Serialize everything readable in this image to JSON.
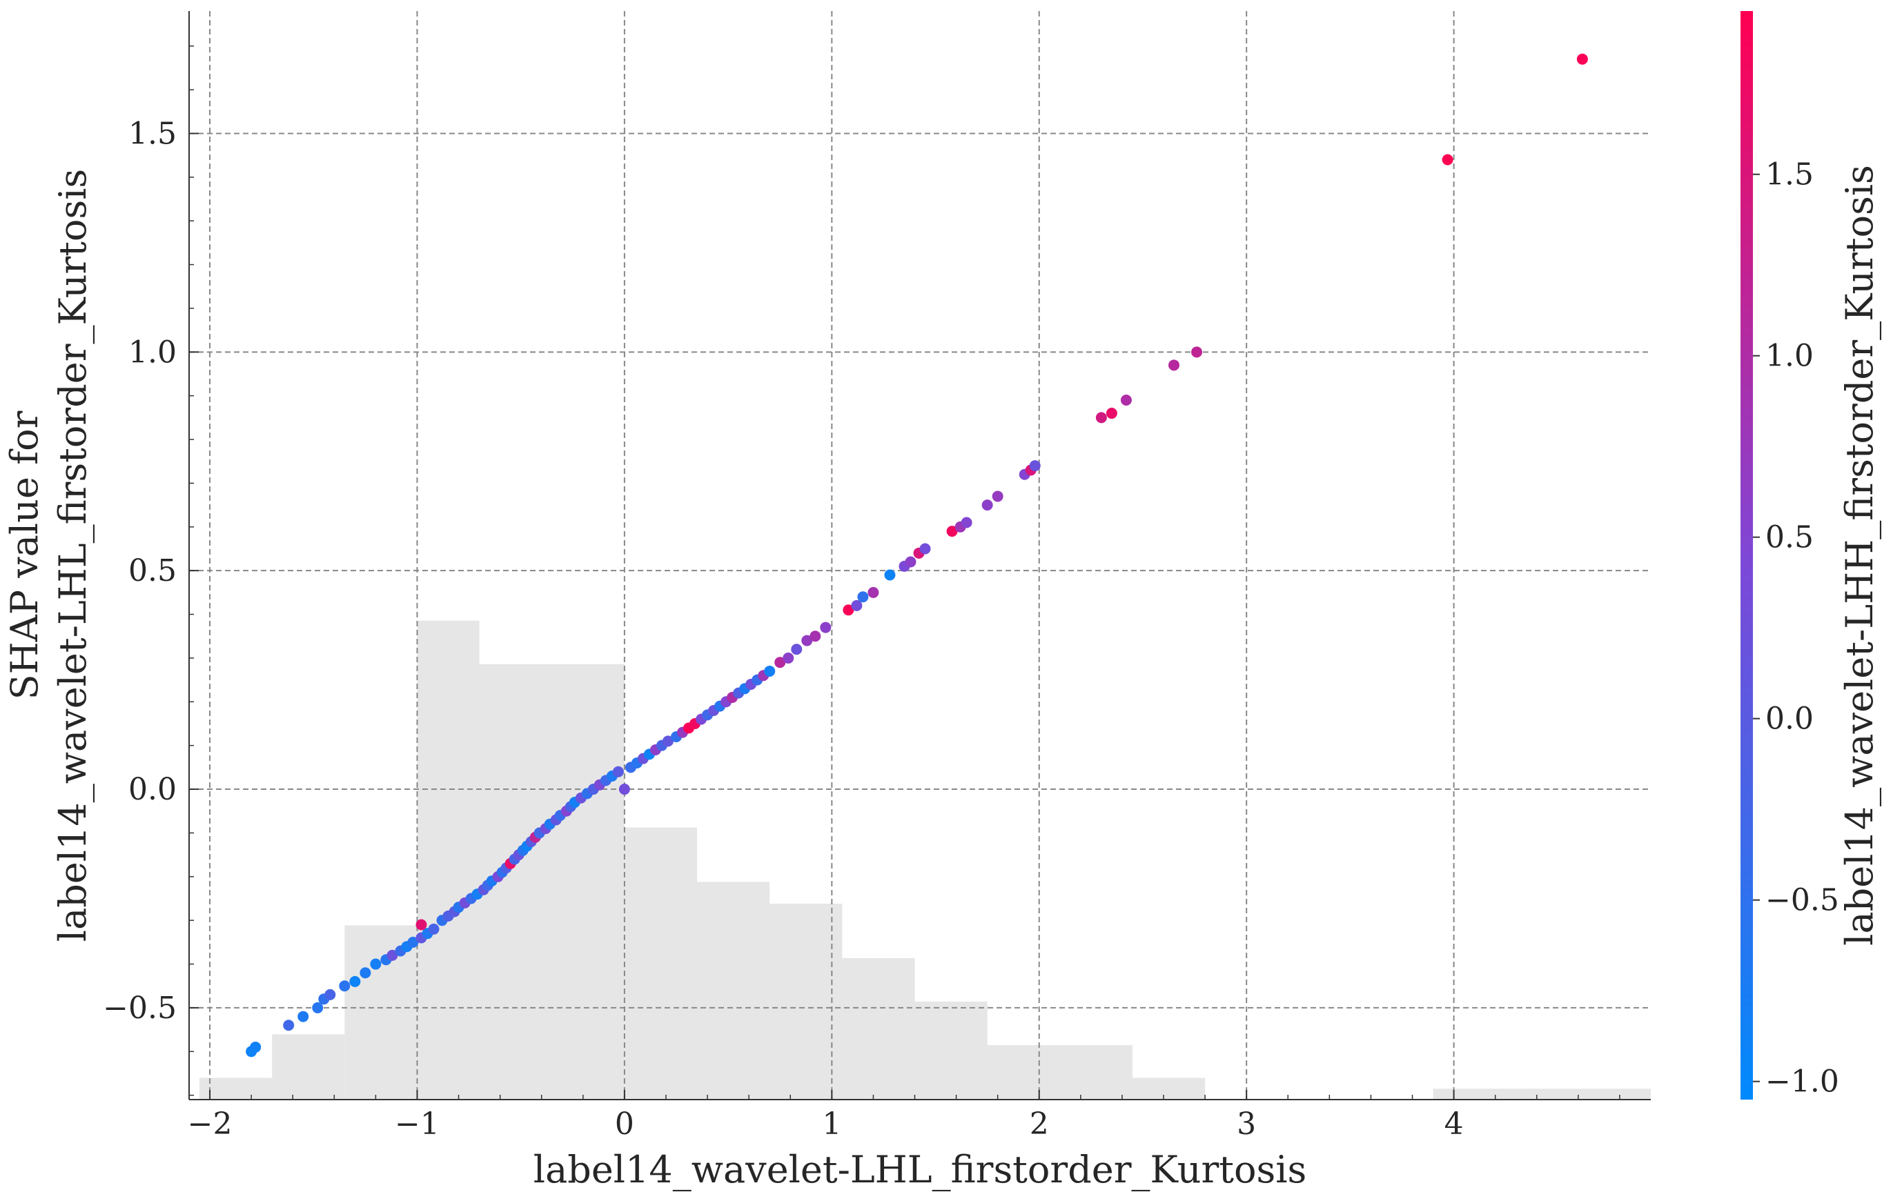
{
  "chart_data": {
    "type": "scatter",
    "title": "",
    "xlabel": "label14_wavelet-LHL_firstorder_Kurtosis",
    "ylabel_lines": [
      "SHAP value for",
      "label14_wavelet-LHL_firstorder_Kurtosis"
    ],
    "xlim": [
      -2.1,
      4.95
    ],
    "ylim": [
      -0.71,
      1.78
    ],
    "xticks": [
      -2,
      -1,
      0,
      1,
      2,
      3,
      4
    ],
    "xtick_labels": [
      "−2",
      "−1",
      "0",
      "1",
      "2",
      "3",
      "4"
    ],
    "yticks": [
      -0.5,
      0.0,
      0.5,
      1.0,
      1.5
    ],
    "ytick_labels": [
      "−0.5",
      "0.0",
      "0.5",
      "1.0",
      "1.5"
    ],
    "grid": true,
    "colorbar": {
      "label": "label14_wavelet-LHH_firstorder_Kurtosis",
      "range": [
        -1.05,
        1.95
      ],
      "ticks": [
        -1.0,
        -0.5,
        0.0,
        0.5,
        1.0,
        1.5
      ],
      "tick_labels": [
        "−1.0",
        "−0.5",
        "0.0",
        "0.5",
        "1.0",
        "1.5"
      ],
      "low_color": "#008afb",
      "high_color": "#ff0052"
    },
    "histogram": {
      "color": "#e6e6e6",
      "bins": [
        {
          "x0": -2.05,
          "x1": -1.7,
          "h": 0.02
        },
        {
          "x0": -1.7,
          "x1": -1.35,
          "h": 0.06
        },
        {
          "x0": -1.35,
          "x1": -1.0,
          "h": 0.16
        },
        {
          "x0": -1.0,
          "x1": -0.7,
          "h": 0.44
        },
        {
          "x0": -0.7,
          "x1": 0.0,
          "h": 0.4
        },
        {
          "x0": 0.0,
          "x1": 0.35,
          "h": 0.25
        },
        {
          "x0": 0.35,
          "x1": 0.7,
          "h": 0.2
        },
        {
          "x0": 0.7,
          "x1": 1.05,
          "h": 0.18
        },
        {
          "x0": 1.05,
          "x1": 1.4,
          "h": 0.13
        },
        {
          "x0": 1.4,
          "x1": 1.75,
          "h": 0.09
        },
        {
          "x0": 1.75,
          "x1": 2.45,
          "h": 0.05
        },
        {
          "x0": 2.45,
          "x1": 2.8,
          "h": 0.02
        },
        {
          "x0": 3.9,
          "x1": 4.25,
          "h": 0.01
        },
        {
          "x0": 4.25,
          "x1": 4.95,
          "h": 0.01
        }
      ]
    },
    "series": [
      {
        "points": [
          [
            -1.8,
            -0.6,
            -0.9
          ],
          [
            -1.78,
            -0.59,
            -0.85
          ],
          [
            -1.62,
            -0.54,
            -0.3
          ],
          [
            -1.55,
            -0.52,
            -0.7
          ],
          [
            -1.48,
            -0.5,
            -0.6
          ],
          [
            -1.45,
            -0.48,
            -0.5
          ],
          [
            -1.42,
            -0.47,
            -0.2
          ],
          [
            -1.35,
            -0.45,
            -0.55
          ],
          [
            -1.3,
            -0.44,
            -0.9
          ],
          [
            -1.25,
            -0.42,
            -0.7
          ],
          [
            -1.2,
            -0.4,
            -0.8
          ],
          [
            -1.15,
            -0.39,
            -0.6
          ],
          [
            -1.12,
            -0.38,
            0.2
          ],
          [
            -1.08,
            -0.37,
            -0.4
          ],
          [
            -1.05,
            -0.36,
            -0.8
          ],
          [
            -1.02,
            -0.35,
            -0.6
          ],
          [
            -0.98,
            -0.34,
            0.1
          ],
          [
            -0.95,
            -0.33,
            -0.7
          ],
          [
            -0.92,
            -0.32,
            -0.2
          ],
          [
            -0.98,
            -0.31,
            1.6
          ],
          [
            -0.88,
            -0.3,
            -0.5
          ],
          [
            -0.85,
            -0.29,
            -0.1
          ],
          [
            -0.82,
            -0.28,
            0.0
          ],
          [
            -0.8,
            -0.27,
            -0.6
          ],
          [
            -0.77,
            -0.26,
            0.3
          ],
          [
            -0.74,
            -0.25,
            -0.4
          ],
          [
            -0.71,
            -0.24,
            -0.8
          ],
          [
            -0.68,
            -0.23,
            0.1
          ],
          [
            -0.66,
            -0.22,
            -0.3
          ],
          [
            -0.64,
            -0.21,
            -0.7
          ],
          [
            -0.61,
            -0.2,
            0.4
          ],
          [
            -0.59,
            -0.19,
            -0.5
          ],
          [
            -0.57,
            -0.18,
            -0.1
          ],
          [
            -0.55,
            -0.17,
            1.7
          ],
          [
            -0.53,
            -0.16,
            -0.2
          ],
          [
            -0.51,
            -0.15,
            0.2
          ],
          [
            -0.49,
            -0.14,
            -0.6
          ],
          [
            -0.47,
            -0.13,
            -0.9
          ],
          [
            -0.45,
            -0.12,
            0.0
          ],
          [
            -0.43,
            -0.11,
            1.2
          ],
          [
            -0.41,
            -0.1,
            -0.3
          ],
          [
            -0.38,
            -0.09,
            0.3
          ],
          [
            -0.36,
            -0.08,
            -0.7
          ],
          [
            -0.33,
            -0.07,
            0.1
          ],
          [
            -0.31,
            -0.06,
            -0.4
          ],
          [
            -0.28,
            -0.05,
            0.5
          ],
          [
            -0.26,
            -0.04,
            -0.2
          ],
          [
            -0.24,
            -0.03,
            -0.8
          ],
          [
            -0.21,
            -0.02,
            0.2
          ],
          [
            -0.18,
            -0.01,
            -0.5
          ],
          [
            -0.15,
            0.0,
            -0.1
          ],
          [
            -0.12,
            0.01,
            0.4
          ],
          [
            -0.09,
            0.02,
            -0.3
          ],
          [
            -0.06,
            0.03,
            -0.7
          ],
          [
            -0.03,
            0.04,
            0.0
          ],
          [
            0.0,
            0.0,
            0.3
          ],
          [
            0.03,
            0.05,
            -0.4
          ],
          [
            0.06,
            0.06,
            -0.6
          ],
          [
            0.09,
            0.07,
            0.2
          ],
          [
            0.12,
            0.08,
            -0.9
          ],
          [
            0.15,
            0.09,
            0.6
          ],
          [
            0.18,
            0.1,
            -0.2
          ],
          [
            0.21,
            0.11,
            0.1
          ],
          [
            0.25,
            0.12,
            -0.5
          ],
          [
            0.28,
            0.13,
            0.7
          ],
          [
            0.31,
            0.14,
            1.9
          ],
          [
            0.34,
            0.15,
            1.8
          ],
          [
            0.37,
            0.16,
            0.4
          ],
          [
            0.4,
            0.17,
            -0.3
          ],
          [
            0.43,
            0.18,
            0.2
          ],
          [
            0.46,
            0.19,
            -0.6
          ],
          [
            0.49,
            0.2,
            0.5
          ],
          [
            0.52,
            0.21,
            1.0
          ],
          [
            0.55,
            0.22,
            -0.1
          ],
          [
            0.58,
            0.23,
            -0.7
          ],
          [
            0.61,
            0.24,
            0.3
          ],
          [
            0.64,
            0.25,
            -0.4
          ],
          [
            0.67,
            0.26,
            0.8
          ],
          [
            0.7,
            0.27,
            -0.8
          ],
          [
            0.75,
            0.29,
            1.1
          ],
          [
            0.79,
            0.3,
            0.6
          ],
          [
            0.83,
            0.32,
            0.2
          ],
          [
            0.88,
            0.34,
            0.7
          ],
          [
            0.92,
            0.35,
            0.9
          ],
          [
            0.97,
            0.37,
            0.6
          ],
          [
            1.08,
            0.41,
            1.9
          ],
          [
            1.12,
            0.42,
            0.3
          ],
          [
            1.15,
            0.44,
            -0.5
          ],
          [
            1.2,
            0.45,
            0.9
          ],
          [
            1.28,
            0.49,
            -0.9
          ],
          [
            1.35,
            0.51,
            0.4
          ],
          [
            1.38,
            0.52,
            0.6
          ],
          [
            1.42,
            0.54,
            1.5
          ],
          [
            1.45,
            0.55,
            0.3
          ],
          [
            1.58,
            0.59,
            1.8
          ],
          [
            1.62,
            0.6,
            0.8
          ],
          [
            1.65,
            0.61,
            0.5
          ],
          [
            1.75,
            0.65,
            0.6
          ],
          [
            1.8,
            0.67,
            0.7
          ],
          [
            1.93,
            0.72,
            0.5
          ],
          [
            1.96,
            0.73,
            1.5
          ],
          [
            1.98,
            0.74,
            0.2
          ],
          [
            2.3,
            0.85,
            1.4
          ],
          [
            2.35,
            0.86,
            1.7
          ],
          [
            2.42,
            0.89,
            1.0
          ],
          [
            2.65,
            0.97,
            1.1
          ],
          [
            2.76,
            1.0,
            1.2
          ],
          [
            3.97,
            1.44,
            1.95
          ],
          [
            4.62,
            1.67,
            1.9
          ]
        ]
      }
    ]
  }
}
